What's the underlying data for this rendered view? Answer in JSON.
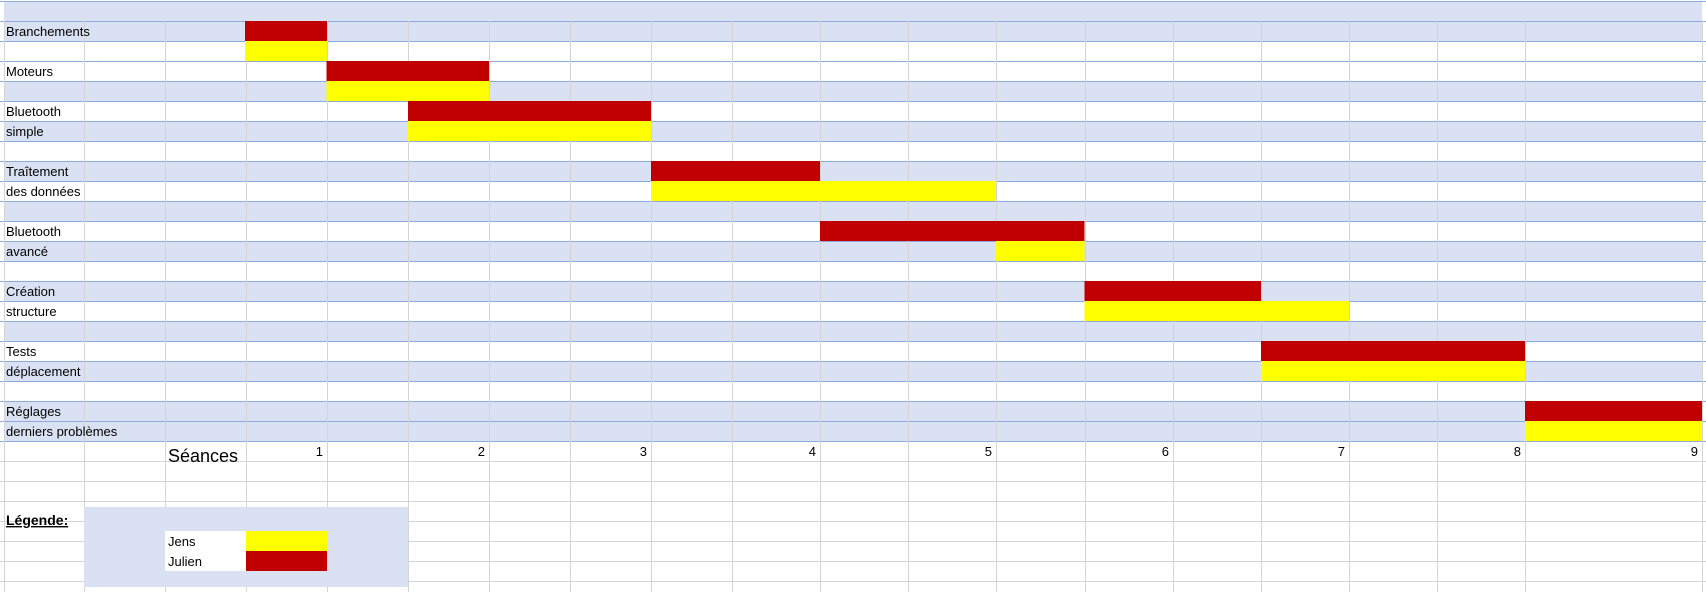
{
  "chart_data": {
    "type": "bar",
    "subtype": "gantt",
    "xlabel": "Séances",
    "x_ticks": [
      1,
      2,
      3,
      4,
      5,
      6,
      7,
      8,
      9
    ],
    "xlim": [
      0,
      9
    ],
    "grid": true,
    "tasks": [
      {
        "label_lines": [
          "Branchements",
          ""
        ],
        "julien": [
          0,
          1
        ],
        "jens": [
          0,
          1
        ]
      },
      {
        "label_lines": [
          "Moteurs",
          ""
        ],
        "julien": [
          0.5,
          2
        ],
        "jens": [
          0.5,
          2
        ]
      },
      {
        "label_lines": [
          "Bluetooth",
          "simple"
        ],
        "julien": [
          1.5,
          3
        ],
        "jens": [
          1.5,
          3
        ]
      },
      {
        "label_lines": [
          "Traîtement",
          "des données"
        ],
        "julien": [
          3,
          4
        ],
        "jens": [
          3,
          5
        ]
      },
      {
        "label_lines": [
          "Bluetooth",
          "avancé"
        ],
        "julien": [
          4,
          5.5
        ],
        "jens": [
          5,
          5.5
        ]
      },
      {
        "label_lines": [
          "Création",
          "structure"
        ],
        "julien": [
          5.5,
          6.5
        ],
        "jens": [
          5.5,
          7
        ]
      },
      {
        "label_lines": [
          "Tests",
          "déplacement"
        ],
        "julien": [
          6.5,
          8
        ],
        "jens": [
          6.5,
          8
        ]
      },
      {
        "label_lines": [
          "Réglages",
          "derniers problèmes"
        ],
        "julien": [
          8,
          9
        ],
        "jens": [
          8,
          9
        ]
      }
    ],
    "legend": {
      "title": "Légende:",
      "placement": "bottom-left",
      "entries": [
        {
          "name": "Jens",
          "color": "#ffff00"
        },
        {
          "name": "Julien",
          "color": "#c00000"
        }
      ]
    }
  },
  "colors": {
    "julien": "#c00000",
    "jens": "#ffff00",
    "band": "#d9e1f2",
    "band_line": "#8ea9db",
    "grid": "#d4d4d4"
  }
}
